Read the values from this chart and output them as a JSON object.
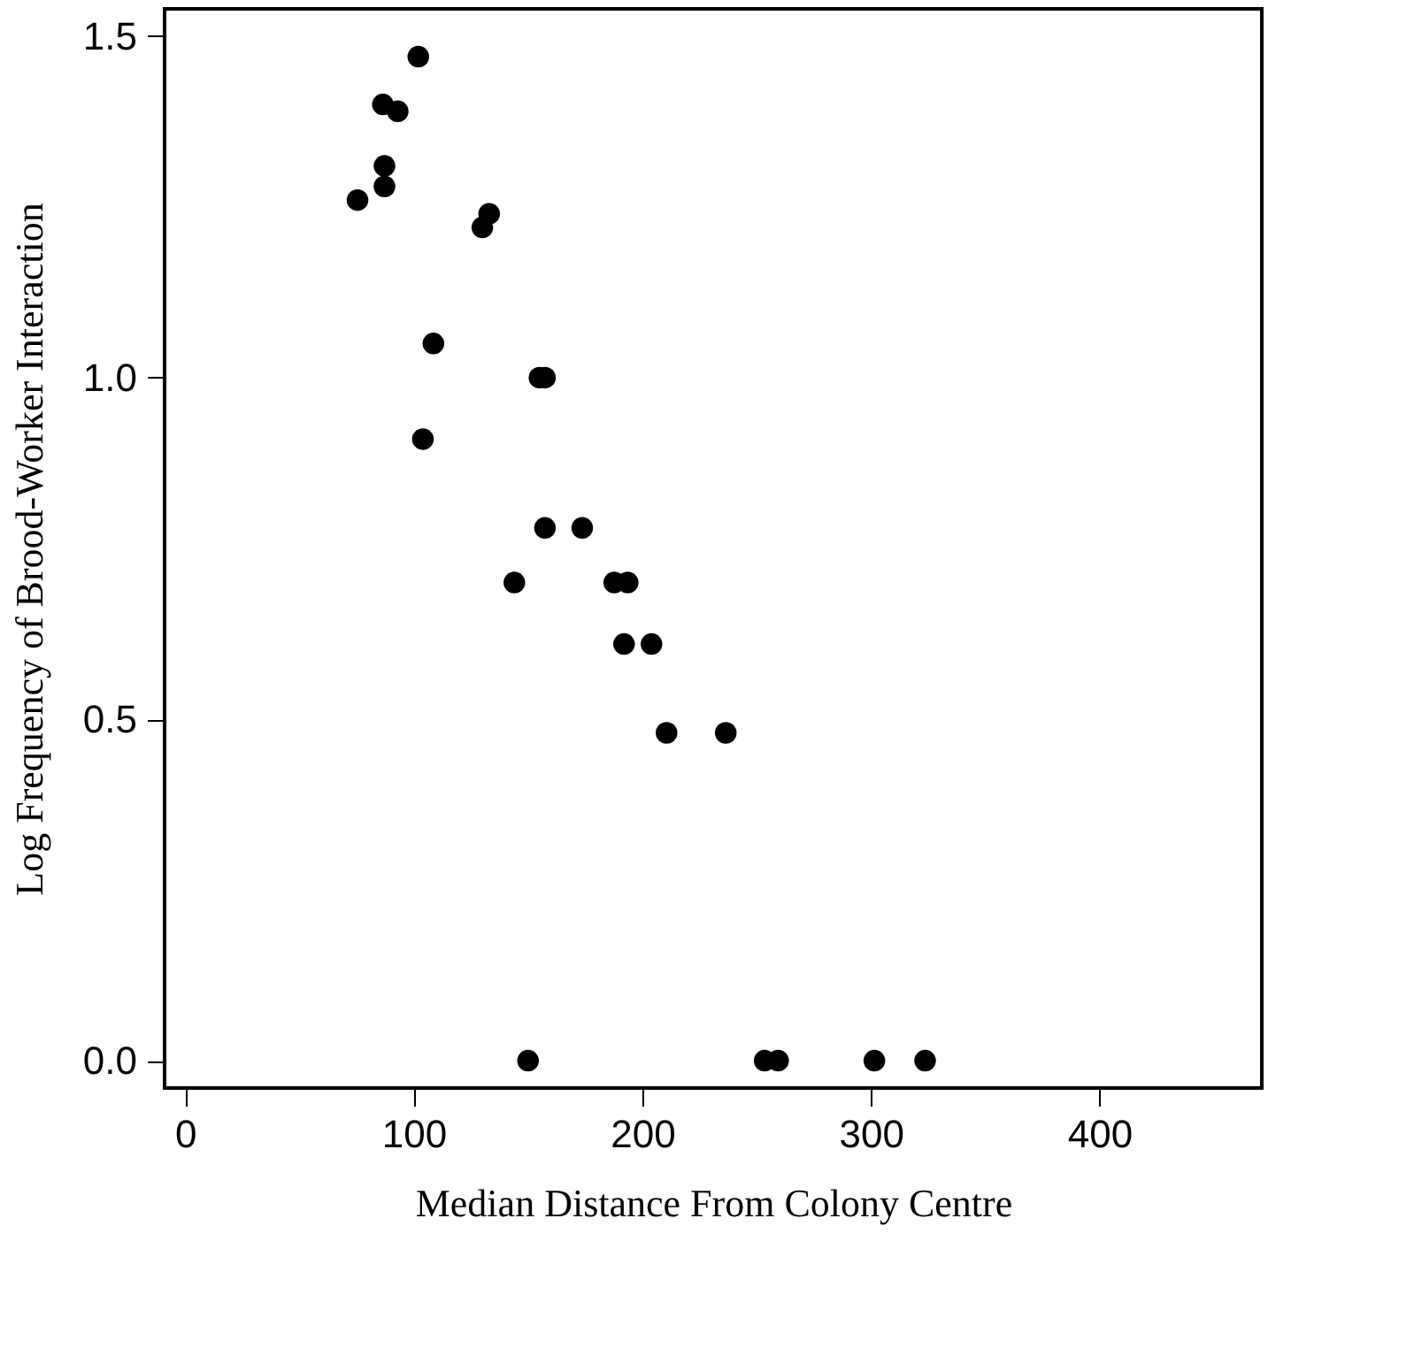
{
  "chart_data": {
    "type": "scatter",
    "xlabel": "Median Distance From Colony Centre",
    "ylabel": "Log Frequency of Brood-Worker Interaction",
    "x": [
      102,
      86.5,
      93,
      87.2,
      87.2,
      75.4,
      130,
      133,
      108.6,
      104,
      155,
      157.4,
      157.4,
      173.7,
      144,
      187.7,
      193.6,
      192,
      204,
      210.6,
      236.5,
      150,
      253.5,
      259.4,
      301.5,
      323.7
    ],
    "series": [
      {
        "color": "#000000",
        "values": [
          1.47,
          1.4,
          1.39,
          1.31,
          1.28,
          1.26,
          1.22,
          1.24,
          1.05,
          0.91,
          1.0,
          1.0,
          0.78,
          0.78,
          0.7,
          0.7,
          0.7,
          0.61,
          0.61,
          0.48,
          0.48,
          0,
          0,
          0,
          0,
          0
        ]
      }
    ],
    "xlim": [
      -9,
      471
    ],
    "ylim": [
      -0.04,
      1.54
    ],
    "xticks": [
      0,
      100,
      200,
      300,
      400
    ],
    "yticks": [
      {
        "value": 0,
        "label": "0.0"
      },
      {
        "value": 0.5,
        "label": "0.5"
      },
      {
        "value": 1,
        "label": "1.0"
      },
      {
        "value": 1.5,
        "label": "1.5"
      }
    ],
    "marker": "circle",
    "grid": false
  }
}
